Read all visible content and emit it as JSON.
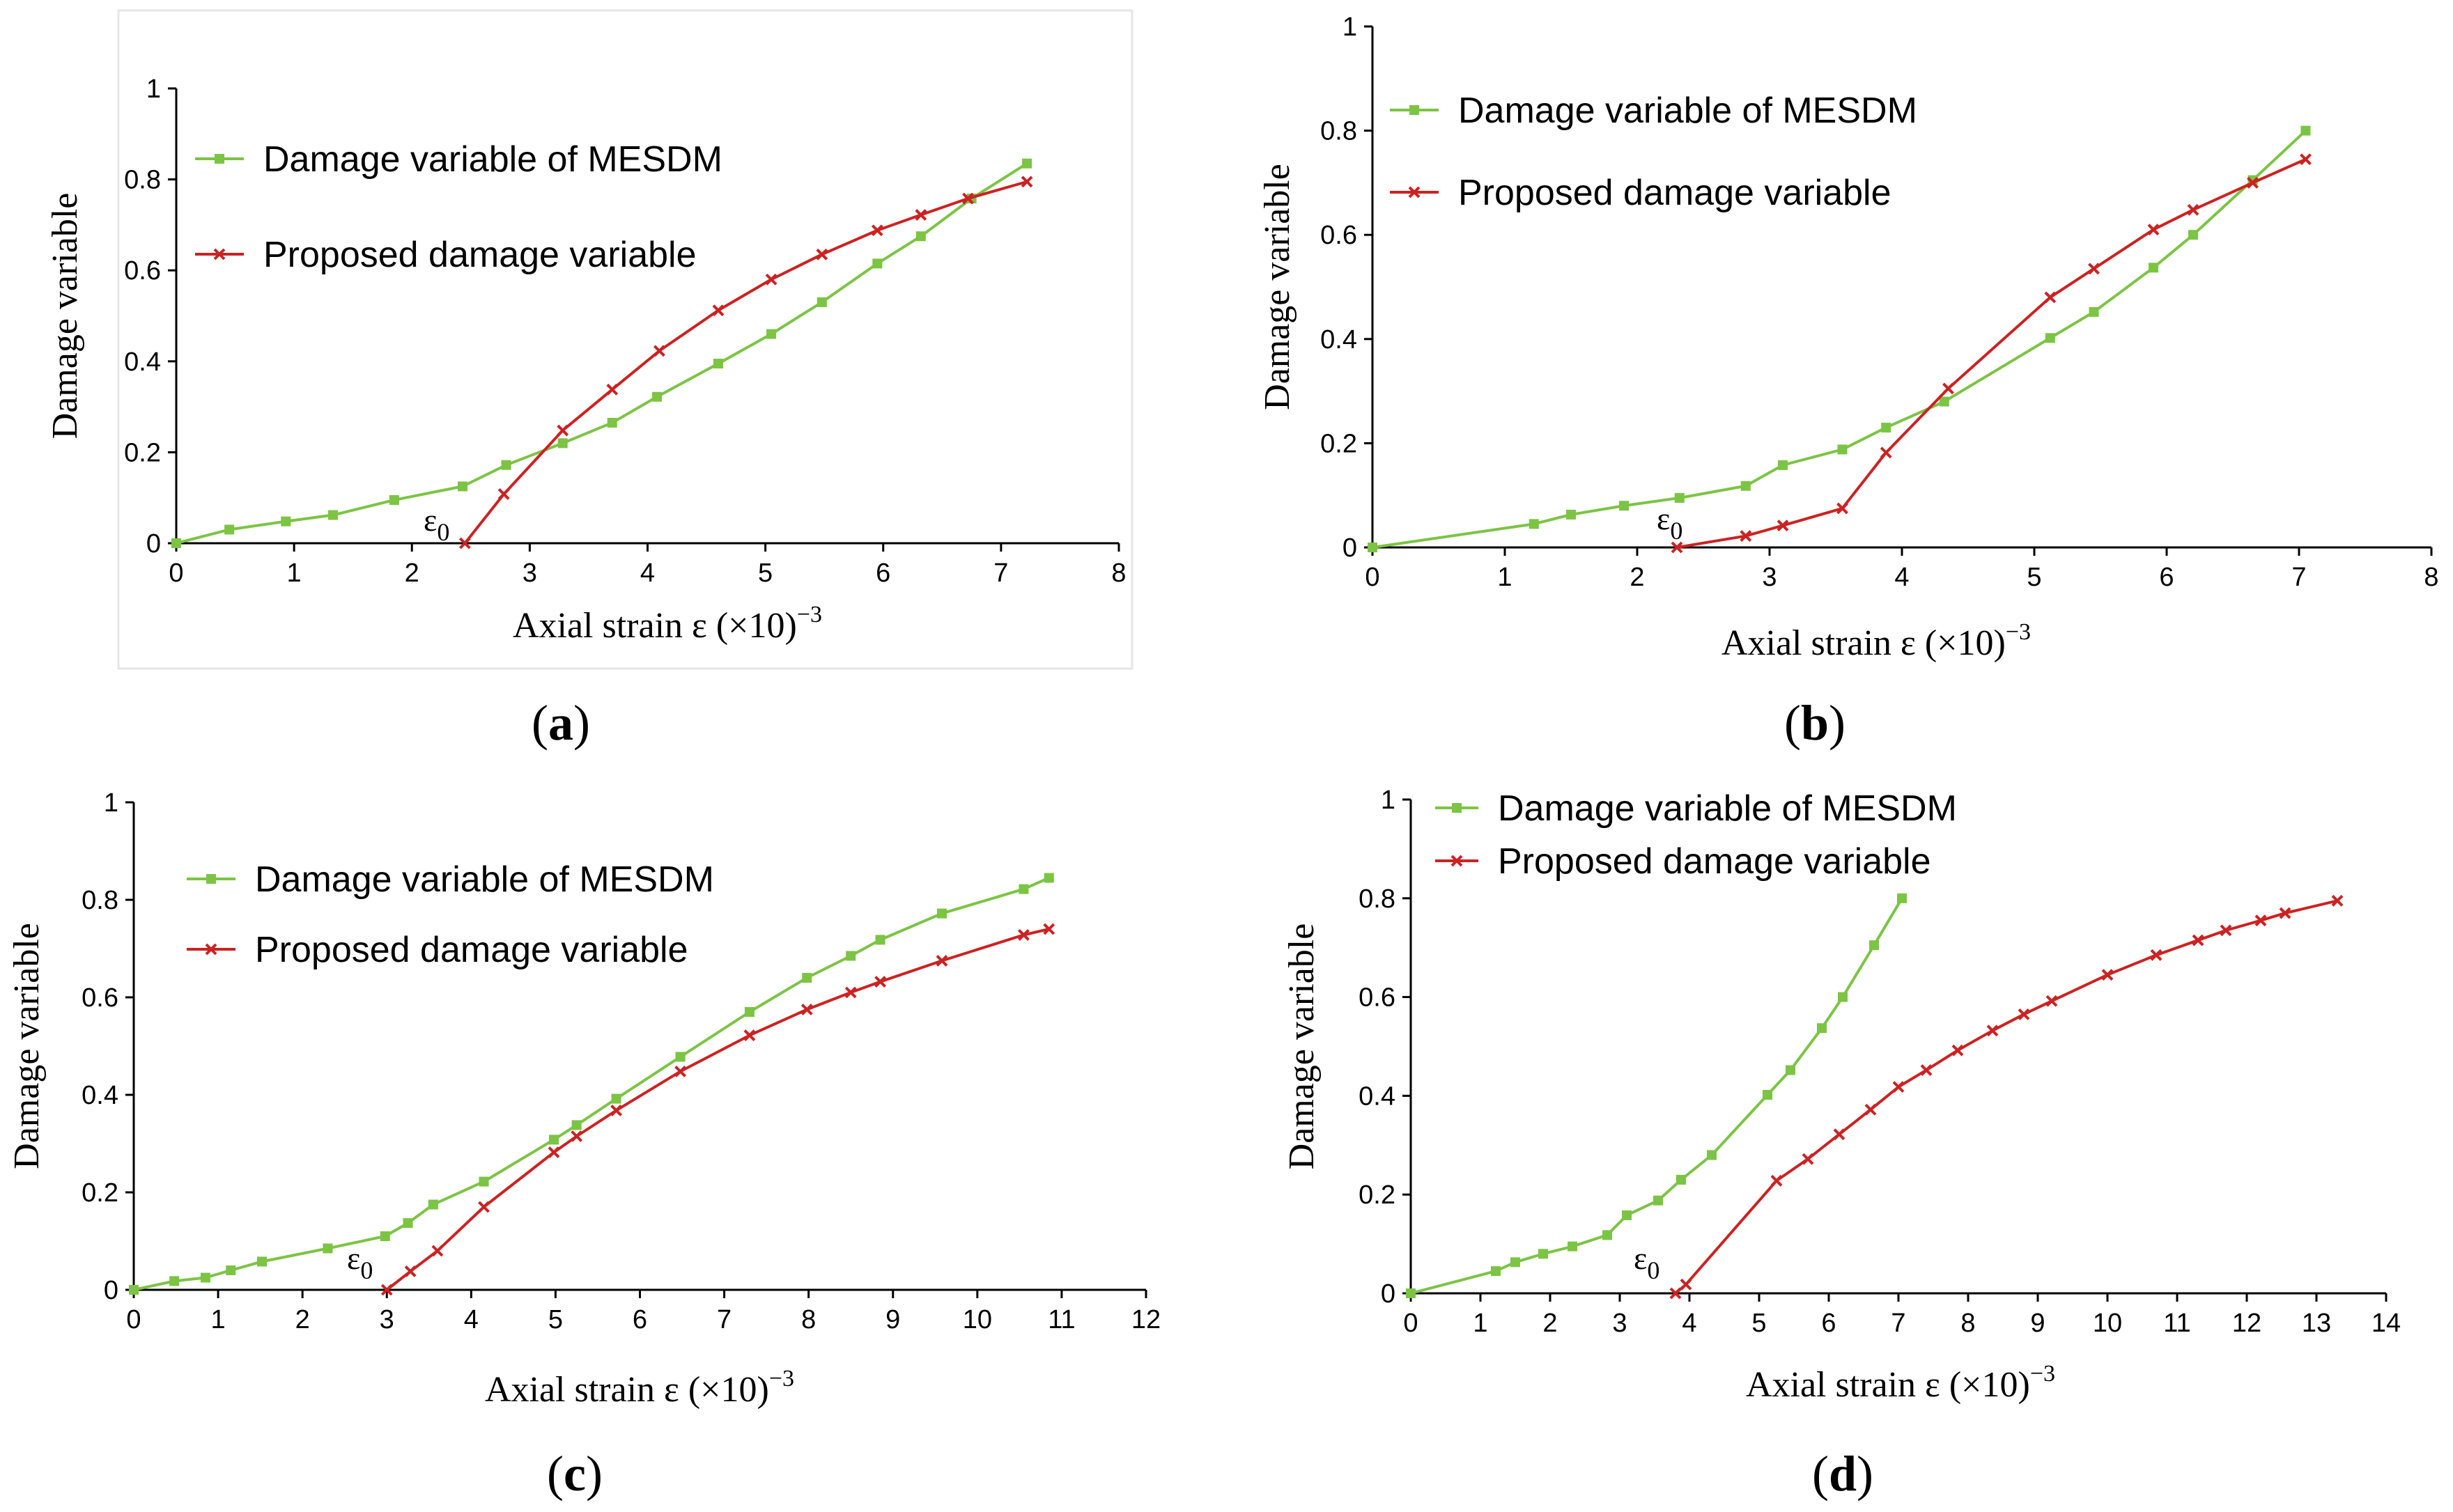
{
  "colors": {
    "mesdm": "#7cc444",
    "proposed": "#cc2222"
  },
  "chart_data": [
    {
      "type": "line",
      "caption_open": "(",
      "caption_letter": "a",
      "caption_close": ")",
      "xlabel": "Axial strain ε (×10)",
      "xlabel_exp": "−3",
      "ylabel": "Damage variable",
      "xlim": [
        0,
        8
      ],
      "ylim": [
        0,
        1
      ],
      "xticks": [
        0,
        1,
        2,
        3,
        4,
        5,
        6,
        7,
        8
      ],
      "yticks": [
        0,
        0.2,
        0.4,
        0.6,
        0.8,
        1
      ],
      "ytick_labels": [
        "0",
        "0.2",
        "0.4",
        "0.6",
        "0.8",
        "1"
      ],
      "annotation": {
        "text": "ε",
        "sub": "0"
      },
      "series": [
        {
          "name": "Damage variable of MESDM",
          "marker": "square",
          "x": [
            0,
            0.45,
            0.93,
            1.33,
            1.85,
            2.43,
            2.8,
            3.28,
            3.7,
            4.08,
            4.6,
            5.05,
            5.48,
            5.95,
            6.32,
            6.75,
            7.22
          ],
          "y": [
            0,
            0.03,
            0.048,
            0.062,
            0.095,
            0.125,
            0.172,
            0.22,
            0.265,
            0.322,
            0.395,
            0.46,
            0.53,
            0.615,
            0.675,
            0.758,
            0.835
          ]
        },
        {
          "name": "Proposed damage variable",
          "marker": "x",
          "x": [
            2.45,
            2.78,
            3.28,
            3.7,
            4.1,
            4.6,
            5.05,
            5.48,
            5.95,
            6.32,
            6.72,
            7.22
          ],
          "y": [
            0,
            0.108,
            0.248,
            0.338,
            0.423,
            0.512,
            0.58,
            0.635,
            0.688,
            0.722,
            0.758,
            0.795
          ]
        }
      ]
    },
    {
      "type": "line",
      "caption_open": "(",
      "caption_letter": "b",
      "caption_close": ")",
      "xlabel": "Axial strain ε (×10)",
      "xlabel_exp": "−3",
      "ylabel": "Damage variable",
      "xlim": [
        0,
        8
      ],
      "ylim": [
        0,
        1
      ],
      "xticks": [
        0,
        1,
        2,
        3,
        4,
        5,
        6,
        7,
        8
      ],
      "yticks": [
        0,
        0.2,
        0.4,
        0.6,
        0.8,
        1
      ],
      "ytick_labels": [
        "0",
        "0.2",
        "0.4",
        "0.6",
        "0.8",
        "1"
      ],
      "annotation": {
        "text": "ε",
        "sub": "0"
      },
      "series": [
        {
          "name": "Damage variable of MESDM",
          "marker": "square",
          "x": [
            0,
            1.22,
            1.5,
            1.9,
            2.32,
            2.82,
            3.1,
            3.55,
            3.88,
            4.32,
            5.12,
            5.45,
            5.9,
            6.2,
            6.65,
            7.05
          ],
          "y": [
            0,
            0.045,
            0.063,
            0.08,
            0.095,
            0.118,
            0.158,
            0.188,
            0.23,
            0.28,
            0.402,
            0.452,
            0.537,
            0.6,
            0.705,
            0.8
          ]
        },
        {
          "name": "Proposed damage variable",
          "marker": "x",
          "x": [
            2.3,
            2.82,
            3.1,
            3.55,
            3.88,
            4.35,
            5.12,
            5.45,
            5.9,
            6.2,
            6.65,
            7.05
          ],
          "y": [
            0,
            0.022,
            0.042,
            0.075,
            0.182,
            0.305,
            0.48,
            0.535,
            0.61,
            0.648,
            0.7,
            0.745
          ]
        }
      ]
    },
    {
      "type": "line",
      "caption_open": "(",
      "caption_letter": "c",
      "caption_close": ")",
      "xlabel": "Axial strain ε (×10)",
      "xlabel_exp": "−3",
      "ylabel": "Damage variable",
      "xlim": [
        0,
        12
      ],
      "ylim": [
        0,
        1
      ],
      "xticks": [
        0,
        1,
        2,
        3,
        4,
        5,
        6,
        7,
        8,
        9,
        10,
        11,
        12
      ],
      "yticks": [
        0,
        0.2,
        0.4,
        0.6,
        0.8,
        1
      ],
      "ytick_labels": [
        "0",
        "0.2",
        "0.4",
        "0.6",
        "0.8",
        "1"
      ],
      "annotation": {
        "text": "ε",
        "sub": "0"
      },
      "series": [
        {
          "name": "Damage variable of MESDM",
          "marker": "square",
          "x": [
            0,
            0.48,
            0.85,
            1.15,
            1.52,
            2.3,
            2.98,
            3.25,
            3.55,
            4.15,
            4.98,
            5.25,
            5.72,
            6.48,
            7.3,
            7.98,
            8.5,
            8.85,
            9.58,
            10.55,
            10.85
          ],
          "y": [
            0,
            0.018,
            0.025,
            0.04,
            0.058,
            0.085,
            0.11,
            0.137,
            0.175,
            0.222,
            0.308,
            0.338,
            0.392,
            0.478,
            0.57,
            0.64,
            0.685,
            0.718,
            0.772,
            0.822,
            0.845
          ]
        },
        {
          "name": "Proposed damage variable",
          "marker": "x",
          "x": [
            3.0,
            3.28,
            3.6,
            4.15,
            4.98,
            5.25,
            5.72,
            6.48,
            7.3,
            7.98,
            8.5,
            8.85,
            9.58,
            10.55,
            10.85
          ],
          "y": [
            0,
            0.038,
            0.08,
            0.17,
            0.282,
            0.315,
            0.368,
            0.448,
            0.522,
            0.575,
            0.61,
            0.632,
            0.675,
            0.728,
            0.74
          ]
        }
      ]
    },
    {
      "type": "line",
      "caption_open": "(",
      "caption_letter": "d",
      "caption_close": ")",
      "xlabel": "Axial strain ε (×10)",
      "xlabel_exp": "−3",
      "ylabel": "Damage variable",
      "xlim": [
        0,
        14
      ],
      "ylim": [
        0,
        1
      ],
      "xticks": [
        0,
        1,
        2,
        3,
        4,
        5,
        6,
        7,
        8,
        9,
        10,
        11,
        12,
        13,
        14
      ],
      "yticks": [
        0,
        0.2,
        0.4,
        0.6,
        0.8,
        1
      ],
      "ytick_labels": [
        "0",
        "0.2",
        "0.4",
        "0.6",
        "0.8",
        "1"
      ],
      "annotation": {
        "text": "ε",
        "sub": "0"
      },
      "series": [
        {
          "name": "Damage variable of MESDM",
          "marker": "square",
          "x": [
            0,
            1.22,
            1.5,
            1.9,
            2.32,
            2.82,
            3.1,
            3.55,
            3.88,
            4.32,
            5.12,
            5.45,
            5.9,
            6.2,
            6.65,
            7.05
          ],
          "y": [
            0,
            0.045,
            0.063,
            0.08,
            0.095,
            0.118,
            0.158,
            0.188,
            0.23,
            0.28,
            0.402,
            0.452,
            0.537,
            0.6,
            0.705,
            0.8
          ]
        },
        {
          "name": "Proposed damage variable",
          "marker": "x",
          "x": [
            3.8,
            3.95,
            5.25,
            5.7,
            6.15,
            6.6,
            7.0,
            7.4,
            7.85,
            8.35,
            8.8,
            9.2,
            10.0,
            10.7,
            11.3,
            11.7,
            12.2,
            12.55,
            13.3
          ],
          "y": [
            0,
            0.018,
            0.228,
            0.272,
            0.322,
            0.372,
            0.418,
            0.452,
            0.492,
            0.532,
            0.565,
            0.592,
            0.645,
            0.685,
            0.715,
            0.735,
            0.755,
            0.77,
            0.795
          ]
        }
      ]
    }
  ]
}
